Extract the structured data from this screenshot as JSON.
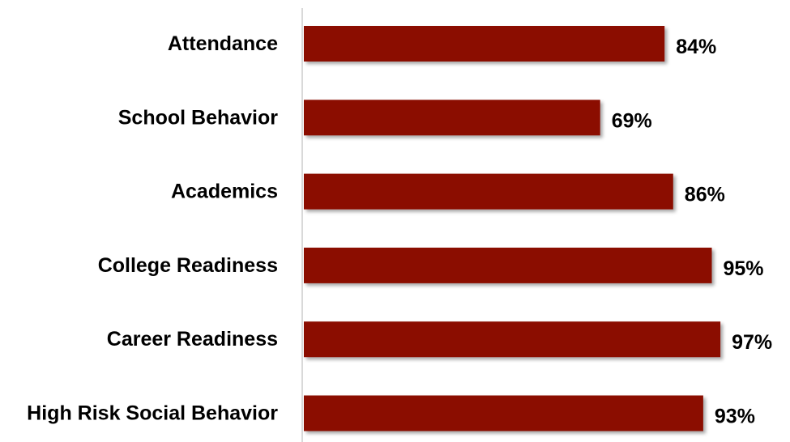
{
  "chart_data": {
    "type": "bar",
    "orientation": "horizontal",
    "categories": [
      "Attendance",
      "School Behavior",
      "Academics",
      "College Readiness",
      "Career Readiness",
      "High Risk Social Behavior"
    ],
    "values": [
      84,
      69,
      86,
      95,
      97,
      93
    ],
    "value_labels": [
      "84%",
      "69%",
      "86%",
      "95%",
      "97%",
      "93%"
    ],
    "unit": "%",
    "title": "",
    "xlabel": "",
    "ylabel": "",
    "xlim": [
      0,
      100
    ],
    "grid": false,
    "legend": "none",
    "bar_color": "#8B0F04",
    "axis_color": "#d9d9d9"
  }
}
